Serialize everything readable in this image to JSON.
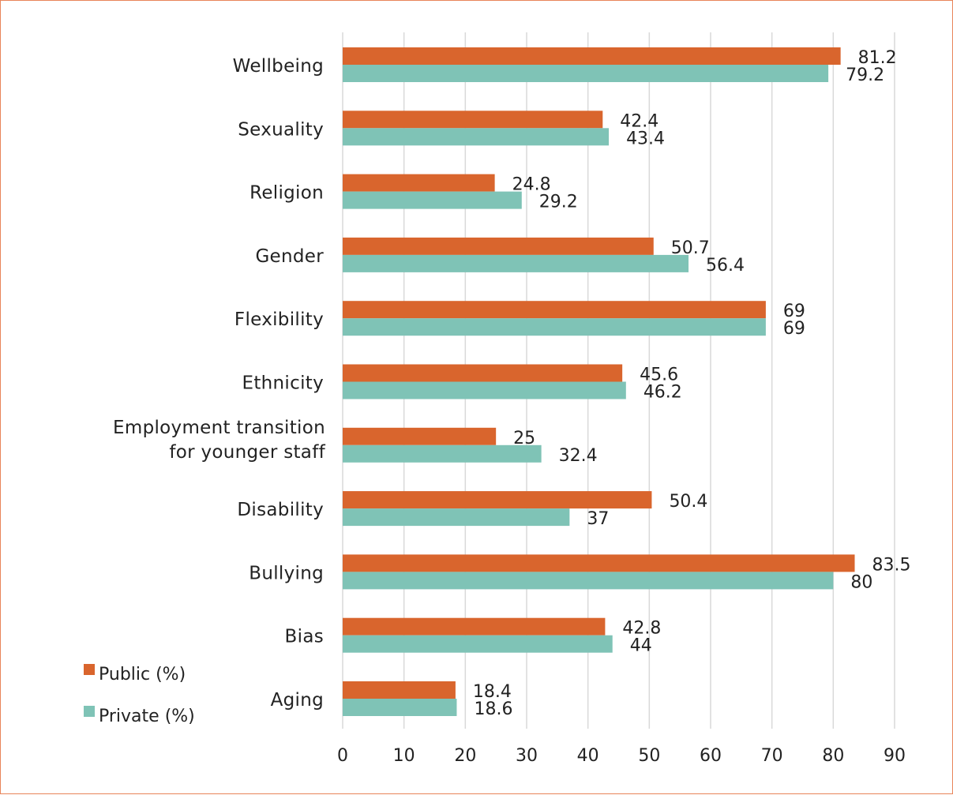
{
  "chart_data": {
    "type": "bar",
    "orientation": "horizontal",
    "categories": [
      "Wellbeing",
      "Sexuality",
      "Religion",
      "Gender",
      "Flexibility",
      "Ethnicity",
      [
        "Employment transition",
        "for younger staff"
      ],
      "Disability",
      "Bullying",
      "Bias",
      "Aging"
    ],
    "series": [
      {
        "name": "Public (%)",
        "color": "#d9652d",
        "values": [
          81.2,
          42.4,
          24.8,
          50.7,
          69,
          45.6,
          25,
          50.4,
          83.5,
          42.8,
          18.4
        ]
      },
      {
        "name": "Private (%)",
        "color": "#7fc3b6",
        "values": [
          79.2,
          43.4,
          29.2,
          56.4,
          69,
          46.2,
          32.4,
          37,
          80,
          44,
          18.6
        ]
      }
    ],
    "xticks": [
      0,
      10,
      20,
      30,
      40,
      50,
      60,
      70,
      80,
      90
    ],
    "xlim": [
      0,
      90
    ],
    "grid": true,
    "legend": "bottom-left",
    "title": "",
    "xlabel": "",
    "ylabel": ""
  }
}
